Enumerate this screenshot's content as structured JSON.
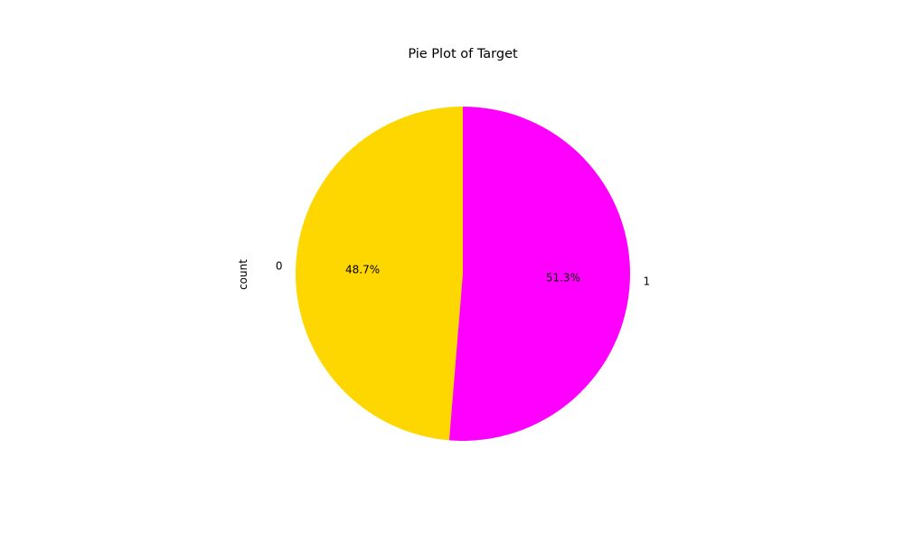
{
  "chart_data": {
    "type": "pie",
    "title": "Pie Plot of Target",
    "ylabel": "count",
    "start_angle_deg": 90,
    "direction": "counterclockwise",
    "slices": [
      {
        "label": "0",
        "percent": 48.7,
        "pct_label": "48.7%",
        "color": "#FFD700"
      },
      {
        "label": "1",
        "percent": 51.3,
        "pct_label": "51.3%",
        "color": "#FF00FF"
      }
    ]
  }
}
